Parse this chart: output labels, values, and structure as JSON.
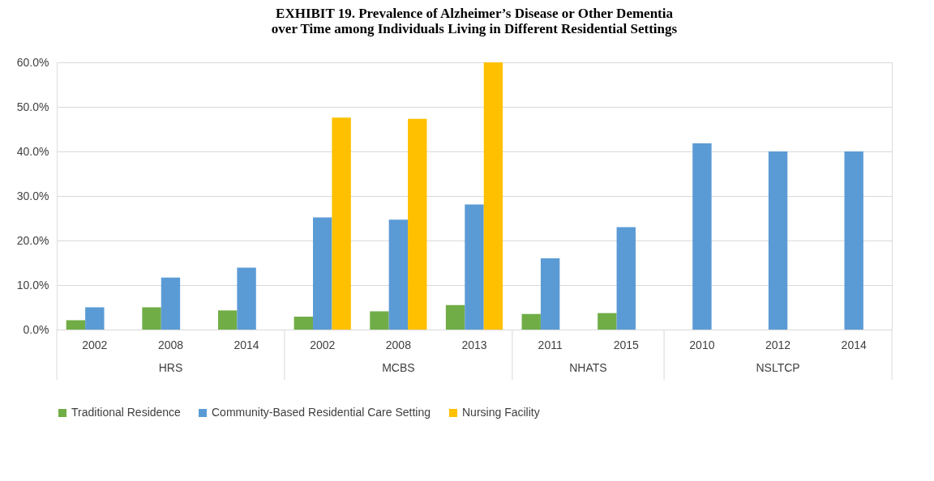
{
  "chart_data": {
    "type": "bar",
    "title": "EXHIBIT 19. Prevalence of Alzheimer’s Disease or Other Dementia over Time among Individuals Living in Different Residential Settings",
    "categories": [
      "2002",
      "2008",
      "2014",
      "2002",
      "2008",
      "2013",
      "2011",
      "2015",
      "2010",
      "2012",
      "2014"
    ],
    "annotations": [
      "HRS",
      "MCBS",
      "NHATS",
      "NSLTCP"
    ],
    "series": [
      {
        "name": "Traditional Residence",
        "color": "#70ad47",
        "values": [
          2.1,
          5.0,
          4.3,
          2.9,
          4.1,
          5.5,
          3.5,
          3.7,
          null,
          null,
          null
        ]
      },
      {
        "name": "Community-Based Residential Care Setting",
        "color": "#5b9bd5",
        "values": [
          5.0,
          11.7,
          13.9,
          25.2,
          24.7,
          28.1,
          16.0,
          23.0,
          41.8,
          40.0,
          40.0
        ]
      },
      {
        "name": "Nursing Facility",
        "color": "#ffc000",
        "values": [
          null,
          null,
          null,
          47.6,
          47.3,
          60.0,
          null,
          null,
          null,
          null,
          null
        ]
      }
    ],
    "ylim": [
      0,
      60
    ],
    "yticks": [
      {
        "value": 0,
        "label": "0.0%"
      },
      {
        "value": 10,
        "label": "10.0%"
      },
      {
        "value": 20,
        "label": "20.0%"
      },
      {
        "value": 30,
        "label": "30.0%"
      },
      {
        "value": 40,
        "label": "40.0%"
      },
      {
        "value": 50,
        "label": "50.0%"
      },
      {
        "value": 60,
        "label": "60.0%"
      }
    ],
    "grid": "y",
    "legend": "bottom"
  }
}
